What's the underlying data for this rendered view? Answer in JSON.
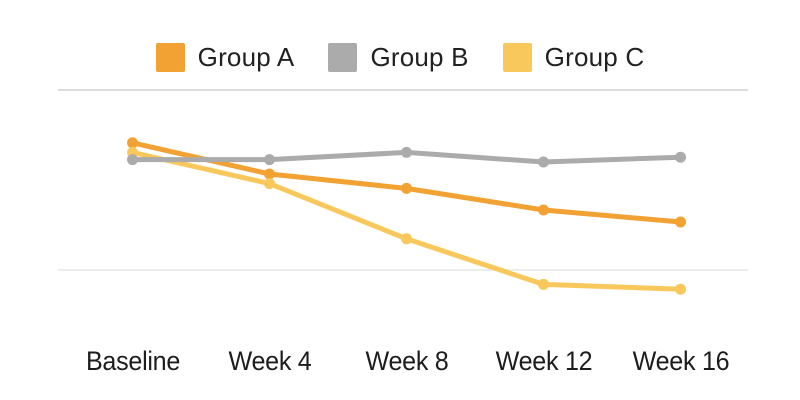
{
  "chart_data": {
    "type": "line",
    "title": "",
    "xlabel": "",
    "ylabel": "",
    "categories": [
      "Baseline",
      "Week 4",
      "Week 8",
      "Week 12",
      "Week 16"
    ],
    "series": [
      {
        "name": "Group A",
        "color": "#F2A133",
        "values": [
          78,
          65,
          59,
          50,
          45
        ]
      },
      {
        "name": "Group B",
        "color": "#ABABAB",
        "values": [
          71,
          71,
          74,
          70,
          72
        ]
      },
      {
        "name": "Group C",
        "color": "#F8C85C",
        "values": [
          74,
          61,
          38,
          19,
          17
        ]
      }
    ],
    "ylim": [
      0,
      125
    ],
    "y_axis_labels_visible": false,
    "gridlines": {
      "values": [
        100,
        25
      ],
      "colors": [
        "#dcdcdc",
        "#ededed"
      ]
    },
    "legend_position": "top-center",
    "background": "#ffffff",
    "text_color": "#212121"
  }
}
